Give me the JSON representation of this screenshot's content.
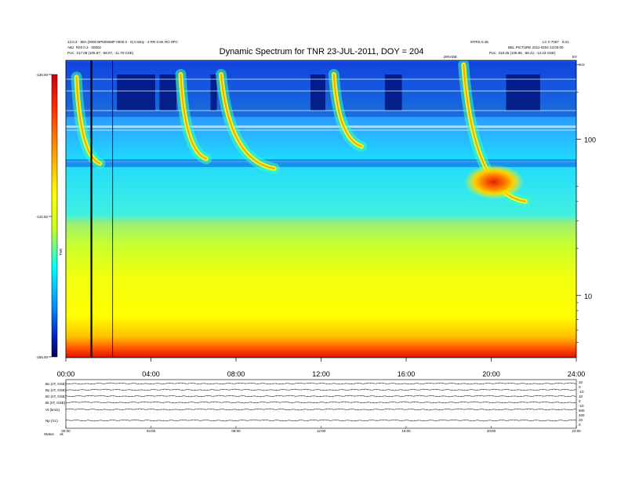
{
  "chart_data": {
    "type": "heatmap",
    "title": "Dynamic Spectrum for TNR 23-JUL-2011, DOY = 204",
    "header_left": {
      "line1": "12:0.3 · 80A (0000 BPM0058P 0000 0 · 0) 0.5Kty · 4 RR 0.5K RO 0PC",
      "line2": "ABJ  R03 0.3 · 00002",
      "line3": "Pos:  217.08 (105.87, -58.07, -11.79 GSE)"
    },
    "header_right": {
      "line1a": "MTRS 0.45",
      "line1b": "LC 0 7007 · 0.01",
      "line2": "BEL PICTURE 2011-0204 23:00:00",
      "line3": "Pos:  218.45 (105.86, -58.42, -13.43 GSE)"
    },
    "top_marker_labels": [
      "DRVIDE",
      "EV"
    ],
    "colorbar": {
      "ticks": [
        "-130.00",
        "-142.50",
        "-155.00"
      ],
      "label": "TNR",
      "zmax": -130,
      "zmin": -155
    },
    "x_axis": {
      "ticks": [
        "00:00",
        "04:00",
        "08:00",
        "12:00",
        "16:00",
        "20:00",
        "24:00"
      ],
      "xlim_hours": [
        0,
        24
      ]
    },
    "y_axis_right": {
      "scale": "log",
      "ticks": [
        "100",
        "10"
      ],
      "top_label": "kHz",
      "ylim_khz": [
        4,
        320
      ]
    },
    "vertical_lines_hours": [
      1.2,
      2.2
    ],
    "bursts": [
      {
        "start_hour": 0.5,
        "end_hour": 1.6,
        "f_high_khz": 250,
        "f_low_khz": 70
      },
      {
        "start_hour": 5.4,
        "end_hour": 6.6,
        "f_high_khz": 260,
        "f_low_khz": 75
      },
      {
        "start_hour": 7.3,
        "end_hour": 9.8,
        "f_high_khz": 260,
        "f_low_khz": 65
      },
      {
        "start_hour": 12.6,
        "end_hour": 13.9,
        "f_high_khz": 260,
        "f_low_khz": 90
      },
      {
        "start_hour": 18.7,
        "end_hour": 21.6,
        "f_high_khz": 300,
        "f_low_khz": 40
      }
    ],
    "lower_panels": {
      "left_labels": [
        "Bx (nT, GSE)",
        "By (nT, GSE)",
        "Bz (nT, GSE)",
        "Bt (nT, GSE)",
        "Vt (km/s)",
        "Np (/cc)"
      ],
      "right_labels": [
        "10",
        "0",
        "-10",
        "10",
        "0",
        "-10",
        "600",
        "400",
        "20",
        "0"
      ],
      "footer_label": "Status",
      "footer_value": "ok",
      "x_ticks": [
        "00:00",
        "04:00",
        "08:00",
        "12:00",
        "16:00",
        "20:00",
        "24:00"
      ]
    }
  }
}
